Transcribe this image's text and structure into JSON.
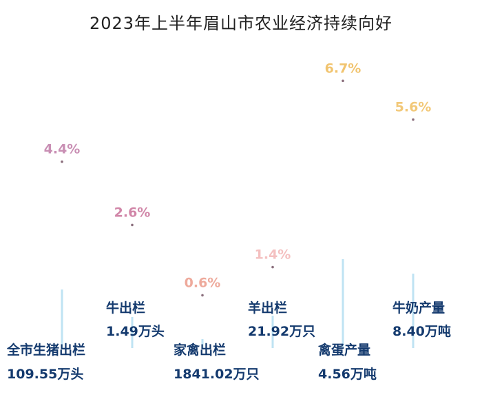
{
  "title": "2023年上半年眉山市农业经济持续向好",
  "chart_data": {
    "type": "scatter",
    "title": "2023年上半年眉山市农业经济持续向好",
    "items": [
      {
        "name": "全市生猪出栏",
        "value_text": "109.55万头",
        "growth": 4.4,
        "growth_label": "4.4%",
        "color": "#c98fb4"
      },
      {
        "name": "牛出栏",
        "value_text": "1.49万头",
        "growth": 2.6,
        "growth_label": "2.6%",
        "color": "#d186a8"
      },
      {
        "name": "家禽出栏",
        "value_text": "1841.02万只",
        "growth": 0.6,
        "growth_label": "0.6%",
        "color": "#eeaa9c"
      },
      {
        "name": "羊出栏",
        "value_text": "21.92万只",
        "growth": 1.4,
        "growth_label": "1.4%",
        "color": "#f4c0c0"
      },
      {
        "name": "禽蛋产量",
        "value_text": "4.56万吨",
        "growth": 6.7,
        "growth_label": "6.7%",
        "color": "#f1c46f"
      },
      {
        "name": "牛奶产量",
        "value_text": "8.40万吨",
        "growth": 5.6,
        "growth_label": "5.6%",
        "color": "#f2c878"
      }
    ]
  }
}
